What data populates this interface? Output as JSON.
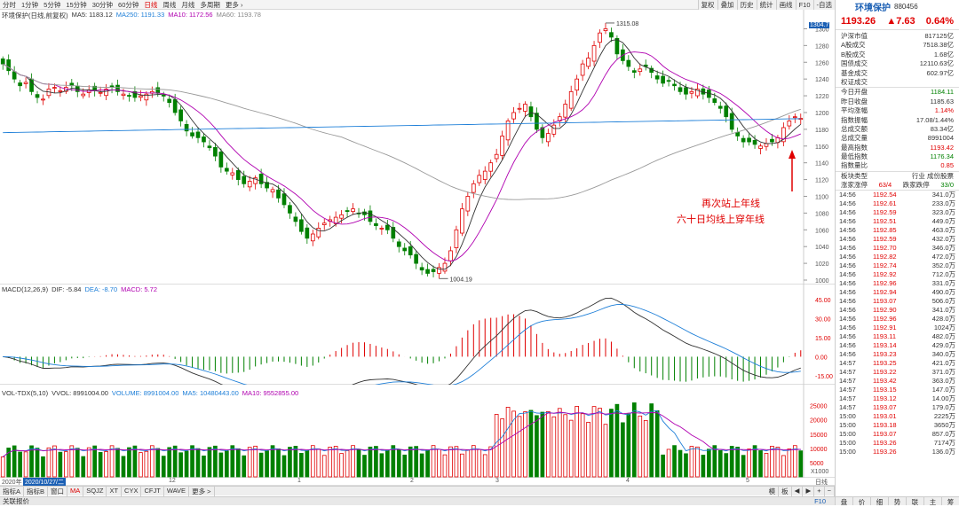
{
  "toolbar": {
    "periods": [
      "分时",
      "1分钟",
      "5分钟",
      "15分钟",
      "30分钟",
      "60分钟",
      "日线",
      "周线",
      "月线",
      "多周期",
      "更多 ›"
    ],
    "active_period": "日线",
    "tools": [
      "复权",
      "叠加",
      "历史",
      "统计",
      "画线",
      "F10",
      "-自选"
    ]
  },
  "main": {
    "legend_title": "环境保护(日线,前复权)",
    "ma5": "MA5: 1183.12",
    "ma250": "MA250: 1191.33",
    "ma10": "MA10: 1172.56",
    "ma60": "MA60: 1193.78",
    "price_axis": [
      "1300",
      "1280",
      "1260",
      "1240",
      "1220",
      "1200",
      "1180",
      "1160",
      "1140",
      "1120",
      "1100",
      "1080",
      "1060",
      "1040",
      "1020",
      "1000"
    ],
    "axis_top_tag": "1304.7",
    "high_label": "1315.08",
    "low_label": "1004.19",
    "annotation_line1": "再次站上年线",
    "annotation_line2": "六十日均线上穿年线"
  },
  "macd": {
    "title": "MACD(12,26,9)",
    "dif": "DIF: -5.84",
    "dea": "DEA: -8.70",
    "macd": "MACD: 5.72",
    "axis": [
      "45.00",
      "30.00",
      "15.00",
      "0.00",
      "-15.00"
    ]
  },
  "vol": {
    "title": "VOL-TDX(5,10)",
    "vvol": "VVOL: 8991004.00",
    "volume": "VOLUME: 8991004.00",
    "ma5": "MA5: 10480443.00",
    "ma10": "MA10: 9552855.00",
    "axis": [
      "25000",
      "20000",
      "15000",
      "10000",
      "5000"
    ],
    "unit": "X1000"
  },
  "xaxis": {
    "date_tag": "2020/10/27/二",
    "year_label": "2020年",
    "months": [
      "12",
      "1",
      "2",
      "3",
      "4",
      "5"
    ],
    "right_label": "日线"
  },
  "bottom_tabs": [
    "指标A",
    "指标B",
    "窗口",
    "MA",
    "SQJZ",
    "XT",
    "CYX",
    "CFJT",
    "WAVE",
    "更多 >"
  ],
  "bottom_right": [
    "模",
    "板",
    "◀",
    "▶",
    "+",
    "−"
  ],
  "status": {
    "left": "关联报价",
    "right": "F10"
  },
  "right": {
    "name": "环境保护",
    "code": "880456",
    "price": "1193.26",
    "change": "▲7.63",
    "pct": "0.64%",
    "stats": [
      {
        "k": "沪深市值",
        "v": "817125亿",
        "c": ""
      },
      {
        "k": "A股成交",
        "v": "7518.38亿",
        "c": ""
      },
      {
        "k": "B股成交",
        "v": "1.68亿",
        "c": ""
      },
      {
        "k": "国债成交",
        "v": "12110.63亿",
        "c": ""
      },
      {
        "k": "基金成交",
        "v": "602.97亿",
        "c": ""
      },
      {
        "k": "权证成交",
        "v": "",
        "c": ""
      }
    ],
    "stats2": [
      {
        "k": "今日开盘",
        "v": "1184.11",
        "c": "green"
      },
      {
        "k": "昨日收盘",
        "v": "1185.63",
        "c": ""
      },
      {
        "k": "平均涨幅",
        "v": "1.14%",
        "c": "red"
      },
      {
        "k": "指数振幅",
        "v": "17.08/1.44%",
        "c": ""
      },
      {
        "k": "总成交额",
        "v": "83.34亿",
        "c": ""
      },
      {
        "k": "总成交量",
        "v": "8991004",
        "c": ""
      },
      {
        "k": "最高指数",
        "v": "1193.42",
        "c": "red"
      },
      {
        "k": "最低指数",
        "v": "1176.34",
        "c": "green"
      },
      {
        "k": "指数量比",
        "v": "0.85",
        "c": "red"
      }
    ],
    "sector_label": "板块类型",
    "sector_value": "行业 成份股票",
    "up_label": "涨家涨停",
    "up_value": "63/4",
    "down_label": "跌家跌停",
    "down_value": "33/0",
    "ticks": [
      [
        "14:56",
        "1192.54",
        "341.0万"
      ],
      [
        "14:56",
        "1192.61",
        "233.0万"
      ],
      [
        "14:56",
        "1192.59",
        "323.0万"
      ],
      [
        "14:56",
        "1192.51",
        "449.0万"
      ],
      [
        "14:56",
        "1192.85",
        "463.0万"
      ],
      [
        "14:56",
        "1192.59",
        "432.0万"
      ],
      [
        "14:56",
        "1192.70",
        "346.0万"
      ],
      [
        "14:56",
        "1192.82",
        "472.0万"
      ],
      [
        "14:56",
        "1192.74",
        "352.0万"
      ],
      [
        "14:56",
        "1192.92",
        "712.0万"
      ],
      [
        "14:56",
        "1192.96",
        "331.0万"
      ],
      [
        "14:56",
        "1192.94",
        "490.0万"
      ],
      [
        "14:56",
        "1193.07",
        "506.0万"
      ],
      [
        "14:56",
        "1192.90",
        "341.0万"
      ],
      [
        "14:56",
        "1192.96",
        "428.0万"
      ],
      [
        "14:56",
        "1192.91",
        "1024万"
      ],
      [
        "14:56",
        "1193.11",
        "482.0万"
      ],
      [
        "14:56",
        "1193.14",
        "429.0万"
      ],
      [
        "14:56",
        "1193.23",
        "340.0万"
      ],
      [
        "14:57",
        "1193.25",
        "421.0万"
      ],
      [
        "14:57",
        "1193.22",
        "371.0万"
      ],
      [
        "14:57",
        "1193.42",
        "363.0万"
      ],
      [
        "14:57",
        "1193.15",
        "147.0万"
      ],
      [
        "14:57",
        "1193.12",
        "14.00万"
      ],
      [
        "14:57",
        "1193.07",
        "179.0万"
      ],
      [
        "15:00",
        "1193.01",
        "2225万"
      ],
      [
        "15:00",
        "1193.18",
        "3650万"
      ],
      [
        "15:00",
        "1193.07",
        "857.0万"
      ],
      [
        "15:00",
        "1193.26",
        "7174万"
      ],
      [
        "15:00",
        "1193.26",
        "136.0万"
      ]
    ],
    "tabs": [
      "盘",
      "价",
      "细",
      "势",
      "联",
      "主",
      "筹"
    ]
  },
  "chart_data": {
    "type": "candlestick",
    "title": "环境保护(日线,前复权)",
    "ylim": [
      1000,
      1310
    ],
    "closes": [
      1258,
      1250,
      1240,
      1232,
      1236,
      1225,
      1218,
      1216,
      1228,
      1230,
      1226,
      1230,
      1232,
      1225,
      1222,
      1227,
      1226,
      1224,
      1228,
      1230,
      1225,
      1222,
      1220,
      1218,
      1220,
      1222,
      1225,
      1223,
      1220,
      1212,
      1200,
      1190,
      1178,
      1172,
      1170,
      1165,
      1158,
      1148,
      1135,
      1130,
      1128,
      1120,
      1115,
      1118,
      1122,
      1115,
      1110,
      1108,
      1098,
      1090,
      1080,
      1070,
      1058,
      1050,
      1055,
      1062,
      1068,
      1072,
      1075,
      1078,
      1082,
      1085,
      1080,
      1078,
      1070,
      1065,
      1062,
      1060,
      1050,
      1040,
      1035,
      1030,
      1020,
      1012,
      1008,
      1010,
      1015,
      1020,
      1035,
      1060,
      1085,
      1100,
      1115,
      1125,
      1130,
      1140,
      1150,
      1172,
      1190,
      1200,
      1205,
      1210,
      1195,
      1180,
      1170,
      1175,
      1185,
      1195,
      1210,
      1225,
      1240,
      1258,
      1265,
      1280,
      1295,
      1300,
      1290,
      1270,
      1262,
      1255,
      1248,
      1252,
      1255,
      1248,
      1240,
      1235,
      1238,
      1232,
      1225,
      1222,
      1225,
      1228,
      1222,
      1218,
      1212,
      1205,
      1195,
      1180,
      1172,
      1165,
      1165,
      1162,
      1160,
      1163,
      1165,
      1170,
      1182,
      1190,
      1195,
      1193
    ],
    "ma_lines": [
      "MA5",
      "MA10",
      "MA60",
      "MA250"
    ],
    "macd_range": [
      -20,
      50
    ],
    "vol_range": [
      0,
      28000
    ]
  }
}
